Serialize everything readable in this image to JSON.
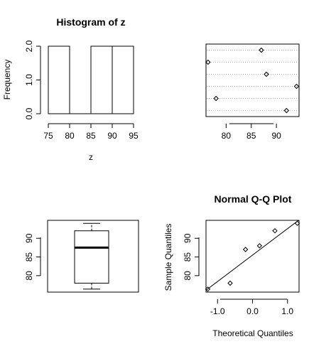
{
  "chart_data": [
    {
      "type": "histogram",
      "title": "Histogram of z",
      "xlabel": "z",
      "ylabel": "Frequency",
      "bins": [
        {
          "from": 75,
          "to": 80,
          "count": 2
        },
        {
          "from": 80,
          "to": 85,
          "count": 0
        },
        {
          "from": 85,
          "to": 90,
          "count": 2
        },
        {
          "from": 90,
          "to": 95,
          "count": 2
        }
      ],
      "xlim": [
        74,
        95
      ],
      "ylim": [
        0,
        2
      ],
      "xticks": [
        "75",
        "80",
        "85",
        "90",
        "95"
      ],
      "yticks": [
        "0.0",
        "1.0",
        "2.0"
      ]
    },
    {
      "type": "scatter",
      "title": "",
      "xlabel": "",
      "ylabel": "",
      "x": [
        76.4,
        78.0,
        87.0,
        88.0,
        92.0,
        94.0
      ],
      "y": [
        5,
        2,
        6,
        4,
        1,
        3
      ],
      "xlim": [
        76.0,
        94.5
      ],
      "ylim": [
        0.5,
        6.5
      ],
      "xticks": [
        "80",
        "85",
        "90"
      ],
      "grid": "dotted horizontal"
    },
    {
      "type": "boxplot",
      "title": "",
      "min": 76.4,
      "q1": 78.0,
      "median": 87.5,
      "q3": 92.0,
      "max": 94.0,
      "ylim": [
        75.6,
        94.8
      ],
      "yticks": [
        "80",
        "85",
        "90"
      ]
    },
    {
      "type": "scatter",
      "title": "Normal Q-Q Plot",
      "xlabel": "Theoretical Quantiles",
      "ylabel": "Sample Quantiles",
      "x": [
        -1.28,
        -0.64,
        -0.2,
        0.2,
        0.64,
        1.28
      ],
      "y": [
        76.4,
        78.0,
        87.0,
        88.0,
        92.0,
        94.0
      ],
      "line": {
        "x": [
          -1.4,
          1.4
        ],
        "y": [
          75.6,
          95.4
        ]
      },
      "xlim": [
        -1.33,
        1.33
      ],
      "ylim": [
        75.6,
        94.8
      ],
      "xticks": [
        "-1.0",
        "0.0",
        "1.0"
      ],
      "yticks": [
        "80",
        "85",
        "90"
      ]
    }
  ]
}
